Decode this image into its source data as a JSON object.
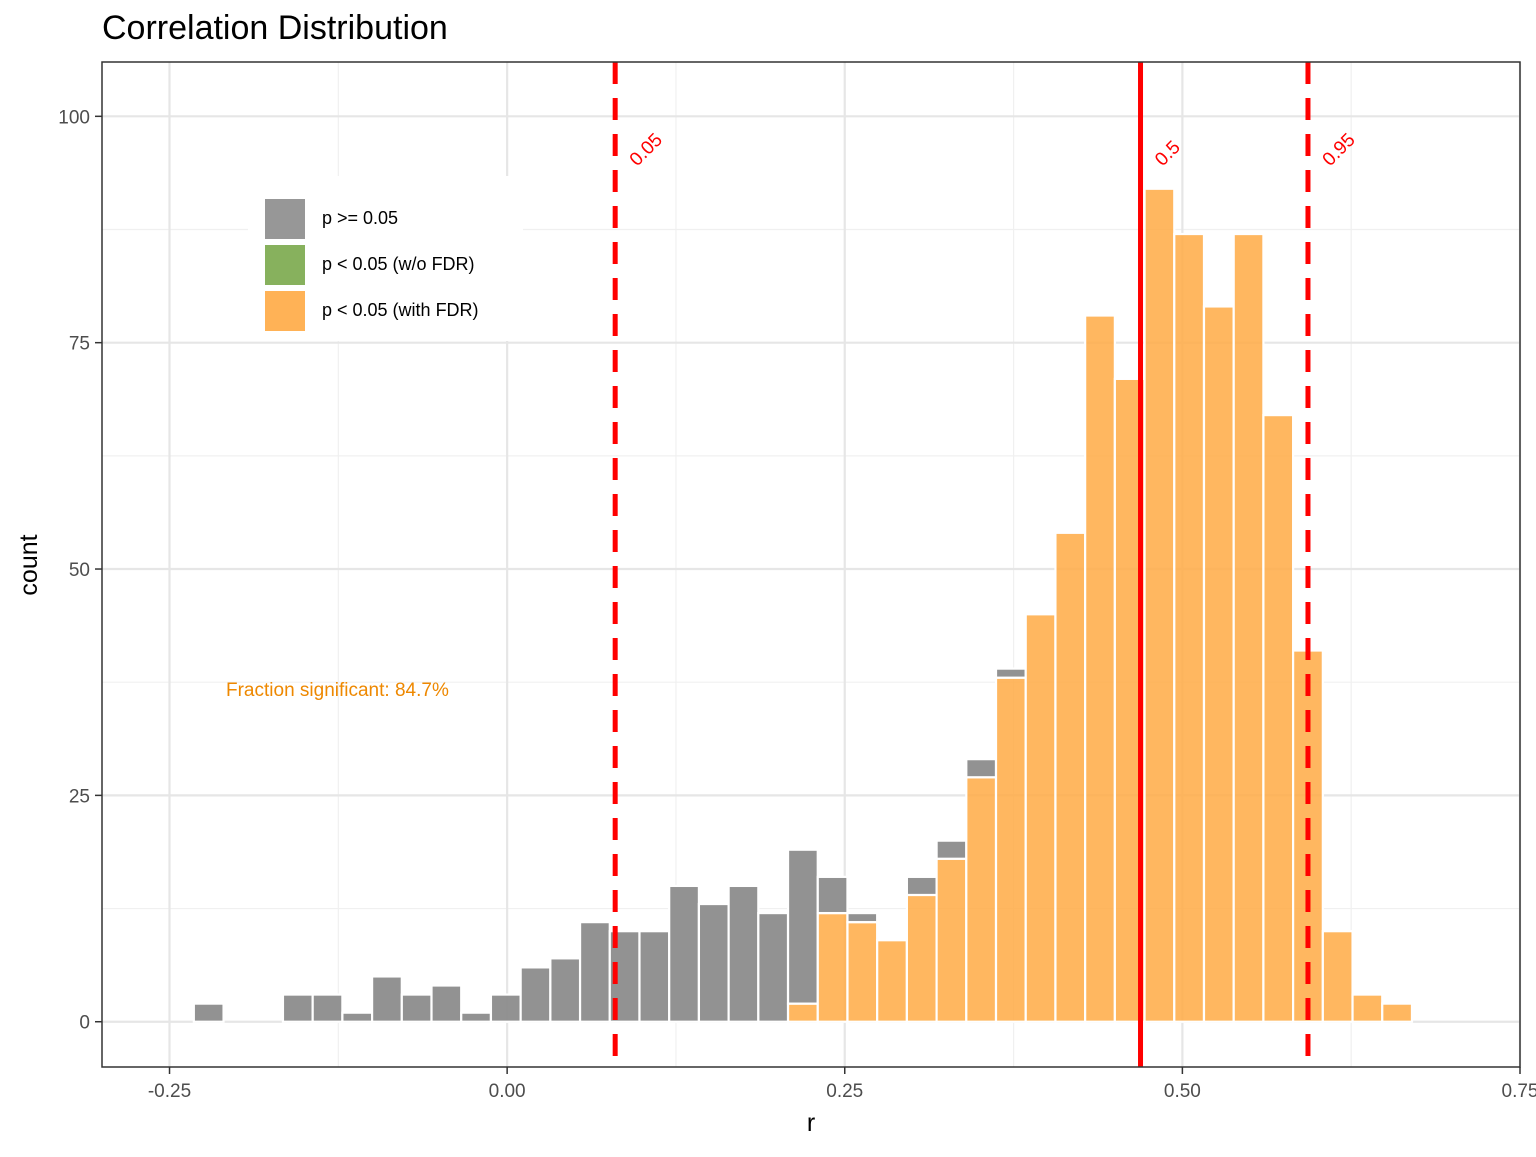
{
  "chart_data": {
    "type": "bar",
    "title": "Correlation Distribution",
    "xlabel": "r",
    "ylabel": "count",
    "xlim": [
      -0.3,
      0.75
    ],
    "ylim": [
      -5,
      106
    ],
    "x_ticks": [
      "-0.25",
      "0.00",
      "0.25",
      "0.50",
      "0.75"
    ],
    "x_tick_values": [
      -0.25,
      0.0,
      0.25,
      0.5,
      0.75
    ],
    "y_ticks": [
      "0",
      "25",
      "50",
      "75",
      "100"
    ],
    "y_tick_values": [
      0,
      25,
      50,
      75,
      100
    ],
    "grid": true,
    "bin_width": 0.022,
    "x": [
      -0.221,
      -0.155,
      -0.133,
      -0.111,
      -0.089,
      -0.067,
      -0.045,
      -0.023,
      -0.001,
      0.021,
      0.043,
      0.065,
      0.087,
      0.109,
      0.131,
      0.153,
      0.175,
      0.197,
      0.219,
      0.241,
      0.263,
      0.285,
      0.307,
      0.329,
      0.351,
      0.373,
      0.395,
      0.417,
      0.439,
      0.461,
      0.483,
      0.505,
      0.527,
      0.549,
      0.571,
      0.593,
      0.615,
      0.637,
      0.659
    ],
    "series": [
      {
        "name": "p >= 0.05",
        "color": "#8c8c8c",
        "values": [
          2,
          3,
          3,
          1,
          5,
          3,
          4,
          1,
          3,
          6,
          7,
          11,
          10,
          10,
          15,
          13,
          15,
          12,
          17,
          4,
          1,
          0,
          2,
          2,
          2,
          1,
          0,
          0,
          0,
          0,
          0,
          0,
          0,
          0,
          0,
          0,
          0,
          0,
          0
        ]
      },
      {
        "name": "p < 0.05 (w/o FDR)",
        "color": "#7aa94b",
        "values": [
          0,
          0,
          0,
          0,
          0,
          0,
          0,
          0,
          0,
          0,
          0,
          0,
          0,
          0,
          0,
          0,
          0,
          0,
          0,
          0,
          0,
          0,
          0,
          0,
          0,
          0,
          0,
          0,
          0,
          0,
          0,
          0,
          0,
          0,
          0,
          0,
          0,
          0,
          0
        ]
      },
      {
        "name": "p < 0.05 (with FDR)",
        "color": "#ffaa44",
        "values": [
          0,
          0,
          0,
          0,
          0,
          0,
          0,
          0,
          0,
          0,
          0,
          0,
          0,
          0,
          0,
          0,
          0,
          0,
          2,
          12,
          11,
          9,
          14,
          18,
          27,
          38,
          45,
          54,
          78,
          71,
          92,
          87,
          79,
          87,
          67,
          41,
          10,
          3,
          2
        ]
      }
    ],
    "vlines": [
      {
        "label": "0.05",
        "x": 0.08,
        "style": "dashed",
        "color": "#ff0000"
      },
      {
        "label": "0.5",
        "x": 0.469,
        "style": "solid",
        "color": "#ff0000"
      },
      {
        "label": "0.95",
        "x": 0.593,
        "style": "dashed",
        "color": "#ff0000"
      }
    ],
    "annotation": {
      "text": "Fraction significant: 84.7%",
      "color": "#ee8800"
    },
    "legend": {
      "placement": "top-left",
      "entries": [
        {
          "label": "p >= 0.05",
          "color": "#8c8c8c"
        },
        {
          "label": "p < 0.05 (w/o FDR)",
          "color": "#7aa94b"
        },
        {
          "label": "p < 0.05 (with FDR)",
          "color": "#ffaa44"
        }
      ]
    }
  }
}
